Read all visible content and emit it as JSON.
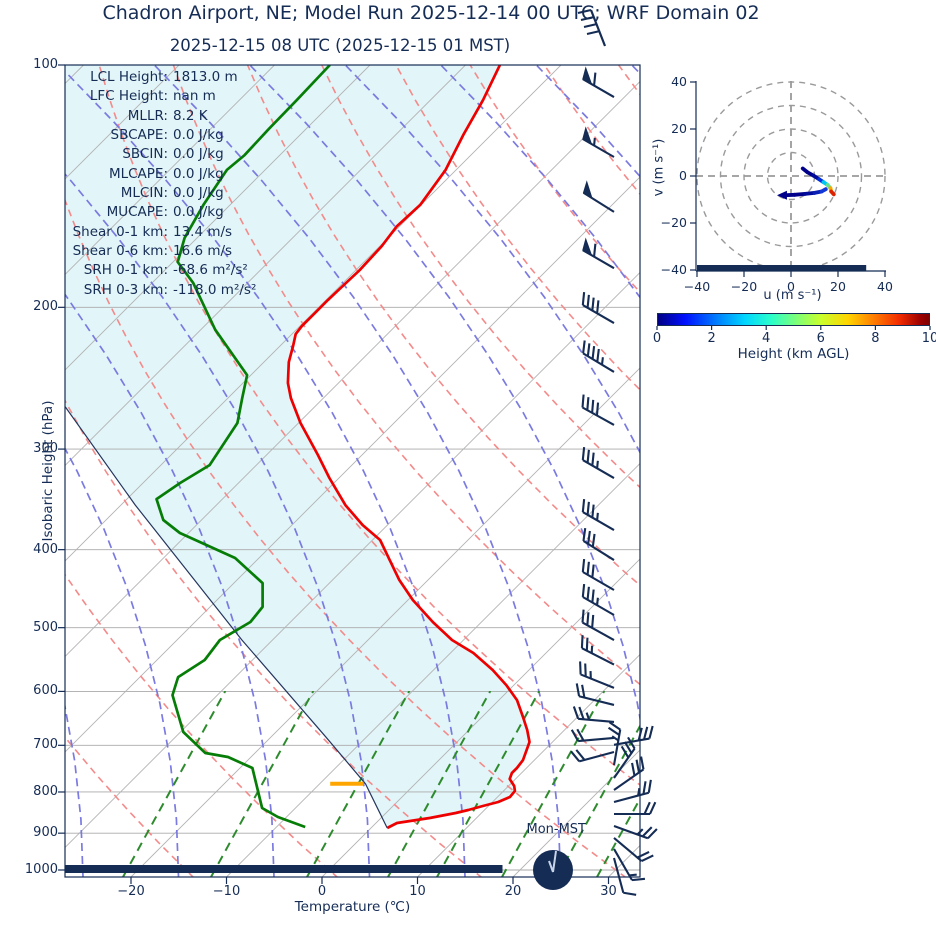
{
  "title": "Chadron Airport, NE; Model Run 2025-12-14 00 UTC; WRF Domain 02",
  "subtitle": "2025-12-15 08 UTC  (2025-12-15 01 MST)",
  "clock": {
    "label": "Mon-MST"
  },
  "stats": [
    {
      "label": "LCL Height:",
      "value": "1813.0 m"
    },
    {
      "label": "LFC Height:",
      "value": "nan m"
    },
    {
      "label": "MLLR:",
      "value": "8.2 K"
    },
    {
      "label": "SBCAPE:",
      "value": "0.0 J/kg"
    },
    {
      "label": "SBCIN:",
      "value": "0.0 J/kg"
    },
    {
      "label": "MLCAPE:",
      "value": "0.0 J/kg"
    },
    {
      "label": "MLCIN:",
      "value": "0.0 J/kg"
    },
    {
      "label": "MUCAPE:",
      "value": "0.0 J/kg"
    },
    {
      "label": "Shear 0-1 km:",
      "value": "13.4 m/s"
    },
    {
      "label": "Shear 0-6 km:",
      "value": "16.6 m/s"
    },
    {
      "label": "SRH 0-1 km:",
      "value": "-68.6 m²/s²"
    },
    {
      "label": "SRH 0-3 km:",
      "value": "-118.0 m²/s²"
    }
  ],
  "skewt": {
    "xlabel": "Temperature (℃)",
    "ylabel": "Isobaric Height (hPa)",
    "x_ticks": [
      -20,
      -10,
      0,
      10,
      20,
      30
    ],
    "y_ticks": [
      100,
      200,
      300,
      400,
      500,
      600,
      700,
      800,
      900,
      1000
    ]
  },
  "colors": {
    "text_navy": "#152c55",
    "temperature": "#ee0000",
    "dewpoint": "#067d06",
    "parcel": "#24365e",
    "cin_shade": "#e2f5f8",
    "isotherm_grid": "#b3b3b3",
    "dry_adiabat": "#f48a8a",
    "moist_adiabat": "#7a7ae0",
    "mixing_line": "#2d8b2d",
    "lcl_marker": "#ffa500",
    "barb": "#152c55"
  },
  "chart_data": {
    "type": "skewt-sounding",
    "pressure_unit": "hPa",
    "temperature_unit": "degC",
    "temperature_profile": {
      "pressure": [
        100,
        110.5,
        122.2,
        135,
        149.2,
        158.6,
        168,
        179.9,
        187.8,
        195.9,
        203.3,
        211,
        215.9,
        222.8,
        233.9,
        248.3,
        259.3,
        278.4,
        305.2,
        325.9,
        352.1,
        372.8,
        389.1,
        412.1,
        436.3,
        461.9,
        492,
        518,
        537.6,
        564.4,
        589.2,
        615.1,
        645.6,
        670.1,
        693.5,
        730.2,
        747,
        757.8,
        770.9,
        786.5,
        797.8,
        811.6,
        823.3,
        832.7,
        842.3,
        849.5,
        861.8,
        874.2,
        886.9
      ],
      "temp": [
        -66.4,
        -64.5,
        -62.9,
        -61.1,
        -60.1,
        -60.3,
        -59.8,
        -59.6,
        -59.7,
        -59.8,
        -59.8,
        -59.8,
        -59.6,
        -58.7,
        -57.4,
        -55.3,
        -53.4,
        -49.8,
        -44.6,
        -41.0,
        -36.5,
        -32.6,
        -29.2,
        -26.1,
        -23.0,
        -19.5,
        -15.1,
        -11.2,
        -7.6,
        -3.8,
        -0.8,
        1.9,
        4.3,
        6.1,
        7.6,
        8.8,
        9.0,
        9.0,
        9.4,
        10.6,
        11.2,
        11.3,
        10.6,
        9.4,
        8.3,
        7.3,
        5.1,
        2.2,
        1.7
      ]
    },
    "dewpoint_profile": {
      "pressure": [
        100,
        110.5,
        120.4,
        129.4,
        135,
        149.2,
        164,
        175.7,
        186.5,
        213.2,
        242.8,
        259.3,
        278.4,
        314.1,
        330.5,
        346.1,
        367.5,
        381.4,
        409.7,
        440.1,
        471.2,
        492,
        518,
        548.5,
        575.9,
        606.4,
        673.9,
        715.6,
        723.9,
        747,
        837.5,
        859.3,
        884.2
      ],
      "temp": [
        -84.2,
        -84.0,
        -83.9,
        -83.7,
        -84.0,
        -82.8,
        -81.3,
        -79.5,
        -75.7,
        -68.5,
        -60.4,
        -58.5,
        -56.4,
        -54.9,
        -56.1,
        -56.9,
        -54.0,
        -50.9,
        -42.5,
        -37.0,
        -34.5,
        -34.2,
        -35.5,
        -35.0,
        -36.0,
        -34.7,
        -29.7,
        -25.2,
        -22.4,
        -18.7,
        -13.5,
        -10.9,
        -7.0
      ]
    },
    "parcel_profile": {
      "pressure": [
        265.9,
        352.1,
        518,
        683.1,
        781.5,
        886.9
      ],
      "temp": [
        -76.1,
        -58.5,
        -33.2,
        -14.3,
        -5.2,
        1.7
      ]
    },
    "lcl_marker": {
      "pressure": 781.5,
      "t_from": -8.9,
      "t_to": -5.4
    },
    "surface_bar": {
      "t_from": -26.9,
      "t_to": 18.9
    },
    "wind_barbs": [
      {
        "p": 109.6,
        "dir": 150,
        "pennants": 1,
        "fulls": 1,
        "halfs": 0
      },
      {
        "p": 130.1,
        "dir": 150,
        "pennants": 1,
        "fulls": 0,
        "halfs": 1
      },
      {
        "p": 152.2,
        "dir": 148,
        "pennants": 1,
        "fulls": 0,
        "halfs": 0
      },
      {
        "p": 178.8,
        "dir": 150,
        "pennants": 1,
        "fulls": 1,
        "halfs": 0
      },
      {
        "p": 209.2,
        "dir": 150,
        "pennants": 0,
        "fulls": 4,
        "halfs": 0
      },
      {
        "p": 240.6,
        "dir": 149,
        "pennants": 0,
        "fulls": 4,
        "halfs": 1
      },
      {
        "p": 280.0,
        "dir": 151,
        "pennants": 0,
        "fulls": 4,
        "halfs": 0
      },
      {
        "p": 325.9,
        "dir": 150,
        "pennants": 0,
        "fulls": 3,
        "halfs": 1
      },
      {
        "p": 378.2,
        "dir": 150,
        "pennants": 0,
        "fulls": 3,
        "halfs": 1
      },
      {
        "p": 412.1,
        "dir": 148,
        "pennants": 0,
        "fulls": 3,
        "halfs": 0
      },
      {
        "p": 448.9,
        "dir": 150,
        "pennants": 0,
        "fulls": 3,
        "halfs": 0
      },
      {
        "p": 482.2,
        "dir": 150,
        "pennants": 0,
        "fulls": 3,
        "halfs": 1
      },
      {
        "p": 518.0,
        "dir": 151,
        "pennants": 0,
        "fulls": 3,
        "halfs": 0
      },
      {
        "p": 555.6,
        "dir": 153,
        "pennants": 0,
        "fulls": 2,
        "halfs": 1
      },
      {
        "p": 594.0,
        "dir": 158,
        "pennants": 0,
        "fulls": 2,
        "halfs": 1
      },
      {
        "p": 623.7,
        "dir": 166,
        "pennants": 0,
        "fulls": 2,
        "halfs": 0
      },
      {
        "p": 654.7,
        "dir": 175,
        "pennants": 0,
        "fulls": 2,
        "halfs": 1
      },
      {
        "p": 685.4,
        "dir": 185,
        "pennants": 0,
        "fulls": 2,
        "halfs": 0
      },
      {
        "p": 699.0,
        "dir": 10,
        "pennants": 0,
        "fulls": 3,
        "halfs": 0
      },
      {
        "p": 713.6,
        "dir": 195,
        "pennants": 0,
        "fulls": 2,
        "halfs": 0
      },
      {
        "p": 740.7,
        "dir": 80,
        "pennants": 0,
        "fulls": 2,
        "halfs": 1
      },
      {
        "p": 768.7,
        "dir": 55,
        "pennants": 0,
        "fulls": 3,
        "halfs": 0
      },
      {
        "p": 795.5,
        "dir": 35,
        "pennants": 0,
        "fulls": 3,
        "halfs": 0
      },
      {
        "p": 823.3,
        "dir": 15,
        "pennants": 0,
        "fulls": 2,
        "halfs": 1
      },
      {
        "p": 852.0,
        "dir": 0,
        "pennants": 0,
        "fulls": 2,
        "halfs": 0
      },
      {
        "p": 881.7,
        "dir": -20,
        "pennants": 0,
        "fulls": 2,
        "halfs": 1
      },
      {
        "p": 912.4,
        "dir": -40,
        "pennants": 0,
        "fulls": 2,
        "halfs": 0
      },
      {
        "p": 941.6,
        "dir": -60,
        "pennants": 0,
        "fulls": 1,
        "halfs": 1
      },
      {
        "p": 966.2,
        "dir": -75,
        "pennants": 0,
        "fulls": 1,
        "halfs": 0
      }
    ]
  },
  "hodograph": {
    "xlabel": "u (m s⁻¹)",
    "ylabel": "v (m s⁻¹)",
    "u_ticks": [
      -40,
      -20,
      0,
      20,
      40
    ],
    "v_ticks": [
      40,
      20,
      0,
      -20,
      -40
    ],
    "rings": [
      10,
      20,
      30,
      40
    ],
    "ground_bar": {
      "u_from": -40,
      "u_to": 32
    },
    "trace_segments": [
      {
        "u1": 5,
        "v1": 3.2,
        "u2": 7,
        "v2": 1.6,
        "color": "#00008b"
      },
      {
        "u1": 7,
        "v1": 1.6,
        "u2": 9.5,
        "v2": 0.2,
        "color": "#00008b"
      },
      {
        "u1": 9.5,
        "v1": 0.2,
        "u2": 12,
        "v2": -1.4,
        "color": "#000a9b"
      },
      {
        "u1": 12,
        "v1": -1.4,
        "u2": 13.8,
        "v2": -2.6,
        "color": "#0030dd"
      },
      {
        "u1": 13.8,
        "v1": -2.6,
        "u2": 15.6,
        "v2": -3.8,
        "color": "#00c8f0"
      },
      {
        "u1": 15.6,
        "v1": -3.8,
        "u2": 16.8,
        "v2": -5.2,
        "color": "#66e08c"
      },
      {
        "u1": 16.8,
        "v1": -5.2,
        "u2": 17.1,
        "v2": -6.6,
        "color": "#ffa500"
      },
      {
        "u1": 17.1,
        "v1": -6.6,
        "u2": 18.2,
        "v2": -7.8,
        "color": "#dd2200"
      },
      {
        "u1": -3,
        "v1": -8.2,
        "u2": 1.5,
        "v2": -8.0,
        "color": "#00008b"
      },
      {
        "u1": 1.5,
        "v1": -8.0,
        "u2": 6,
        "v2": -7.6,
        "color": "#00008b"
      },
      {
        "u1": 6,
        "v1": -7.6,
        "u2": 10,
        "v2": -7.2,
        "color": "#000a9b"
      },
      {
        "u1": 10,
        "v1": -7.2,
        "u2": 13,
        "v2": -6.6,
        "color": "#0a1fb4"
      },
      {
        "u1": 13,
        "v1": -6.6,
        "u2": 14.8,
        "v2": -5.6,
        "color": "#1238d8"
      }
    ]
  },
  "colorbar": {
    "label": "Height (km AGL)",
    "ticks": [
      0,
      2,
      4,
      6,
      8,
      10
    ]
  }
}
